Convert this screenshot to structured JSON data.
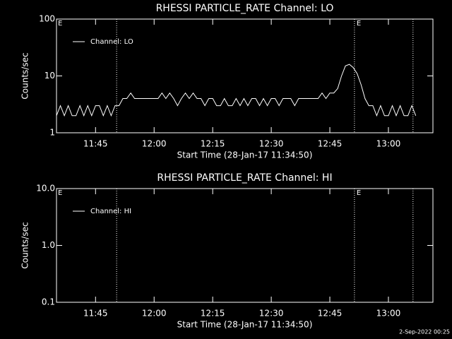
{
  "chart_data": [
    {
      "type": "line",
      "title": "RHESSI PARTICLE_RATE Channel: LO",
      "xlabel": "Start Time (28-Jan-17 11:34:50)",
      "ylabel": "Counts/sec",
      "log_y": true,
      "grid": false,
      "legend": "upper left",
      "xlim": [
        695,
        791.4
      ],
      "xticks": [
        {
          "value": 705,
          "label": "11:45"
        },
        {
          "value": 720,
          "label": "12:00"
        },
        {
          "value": 735,
          "label": "12:15"
        },
        {
          "value": 750,
          "label": "12:30"
        },
        {
          "value": 765,
          "label": "12:45"
        },
        {
          "value": 780,
          "label": "13:00"
        }
      ],
      "ylim": [
        1,
        100
      ],
      "yticks": [
        1,
        10,
        100
      ],
      "vlines": [
        710.4,
        771.3,
        786.3
      ],
      "annotations": [
        "E",
        "E"
      ],
      "x": [
        695,
        696,
        697,
        698,
        699,
        700,
        701,
        702,
        703,
        704,
        705,
        706,
        707,
        708,
        709,
        710,
        711,
        712,
        713,
        714,
        715,
        716,
        717,
        718,
        719,
        720,
        721,
        722,
        723,
        724,
        725,
        726,
        727,
        728,
        729,
        730,
        731,
        732,
        733,
        734,
        735,
        736,
        737,
        738,
        739,
        740,
        741,
        742,
        743,
        744,
        745,
        746,
        747,
        748,
        749,
        750,
        751,
        752,
        753,
        754,
        755,
        756,
        757,
        758,
        759,
        760,
        761,
        762,
        763,
        764,
        765,
        766,
        767,
        768,
        769,
        770,
        771,
        772,
        773,
        774,
        775,
        776,
        777,
        778,
        779,
        780,
        781,
        782,
        783,
        784,
        785,
        786,
        787
      ],
      "series": [
        {
          "name": "Channel: LO",
          "color": "#ffffff",
          "values": [
            2,
            3,
            2,
            3,
            2,
            2,
            3,
            2,
            3,
            2,
            3,
            3,
            2,
            3,
            2,
            3,
            3,
            4,
            4,
            5,
            4,
            4,
            4,
            4,
            4,
            4,
            4,
            5,
            4,
            5,
            4,
            3,
            4,
            5,
            4,
            5,
            4,
            4,
            3,
            4,
            4,
            3,
            3,
            4,
            3,
            3,
            4,
            3,
            4,
            3,
            4,
            4,
            3,
            4,
            3,
            4,
            4,
            3,
            4,
            4,
            4,
            3,
            4,
            4,
            4,
            4,
            4,
            4,
            5,
            4,
            5,
            5,
            6,
            10,
            15,
            16,
            14,
            11,
            7,
            4,
            3,
            3,
            2,
            3,
            2,
            2,
            3,
            2,
            3,
            2,
            2,
            3,
            2
          ]
        }
      ]
    },
    {
      "type": "line",
      "title": "RHESSI PARTICLE_RATE Channel: HI",
      "xlabel": "Start Time (28-Jan-17 11:34:50)",
      "ylabel": "Counts/sec",
      "log_y": true,
      "grid": false,
      "legend": "upper left",
      "xlim": [
        695,
        791.4
      ],
      "xticks": [
        {
          "value": 705,
          "label": "11:45"
        },
        {
          "value": 720,
          "label": "12:00"
        },
        {
          "value": 735,
          "label": "12:15"
        },
        {
          "value": 750,
          "label": "12:30"
        },
        {
          "value": 765,
          "label": "12:45"
        },
        {
          "value": 780,
          "label": "13:00"
        }
      ],
      "ylim": [
        0.1,
        10
      ],
      "yticks": [
        0.1,
        {
          "value": 1,
          "label": "1.0"
        },
        {
          "value": 10,
          "label": "10.0"
        }
      ],
      "vlines": [
        710.4,
        771.3,
        786.3
      ],
      "annotations": [
        "E",
        "E"
      ],
      "x": [],
      "series": [
        {
          "name": "Channel: HI",
          "color": "#ffffff",
          "values": []
        }
      ]
    }
  ],
  "timestamp": "2-Sep-2022 00:25"
}
